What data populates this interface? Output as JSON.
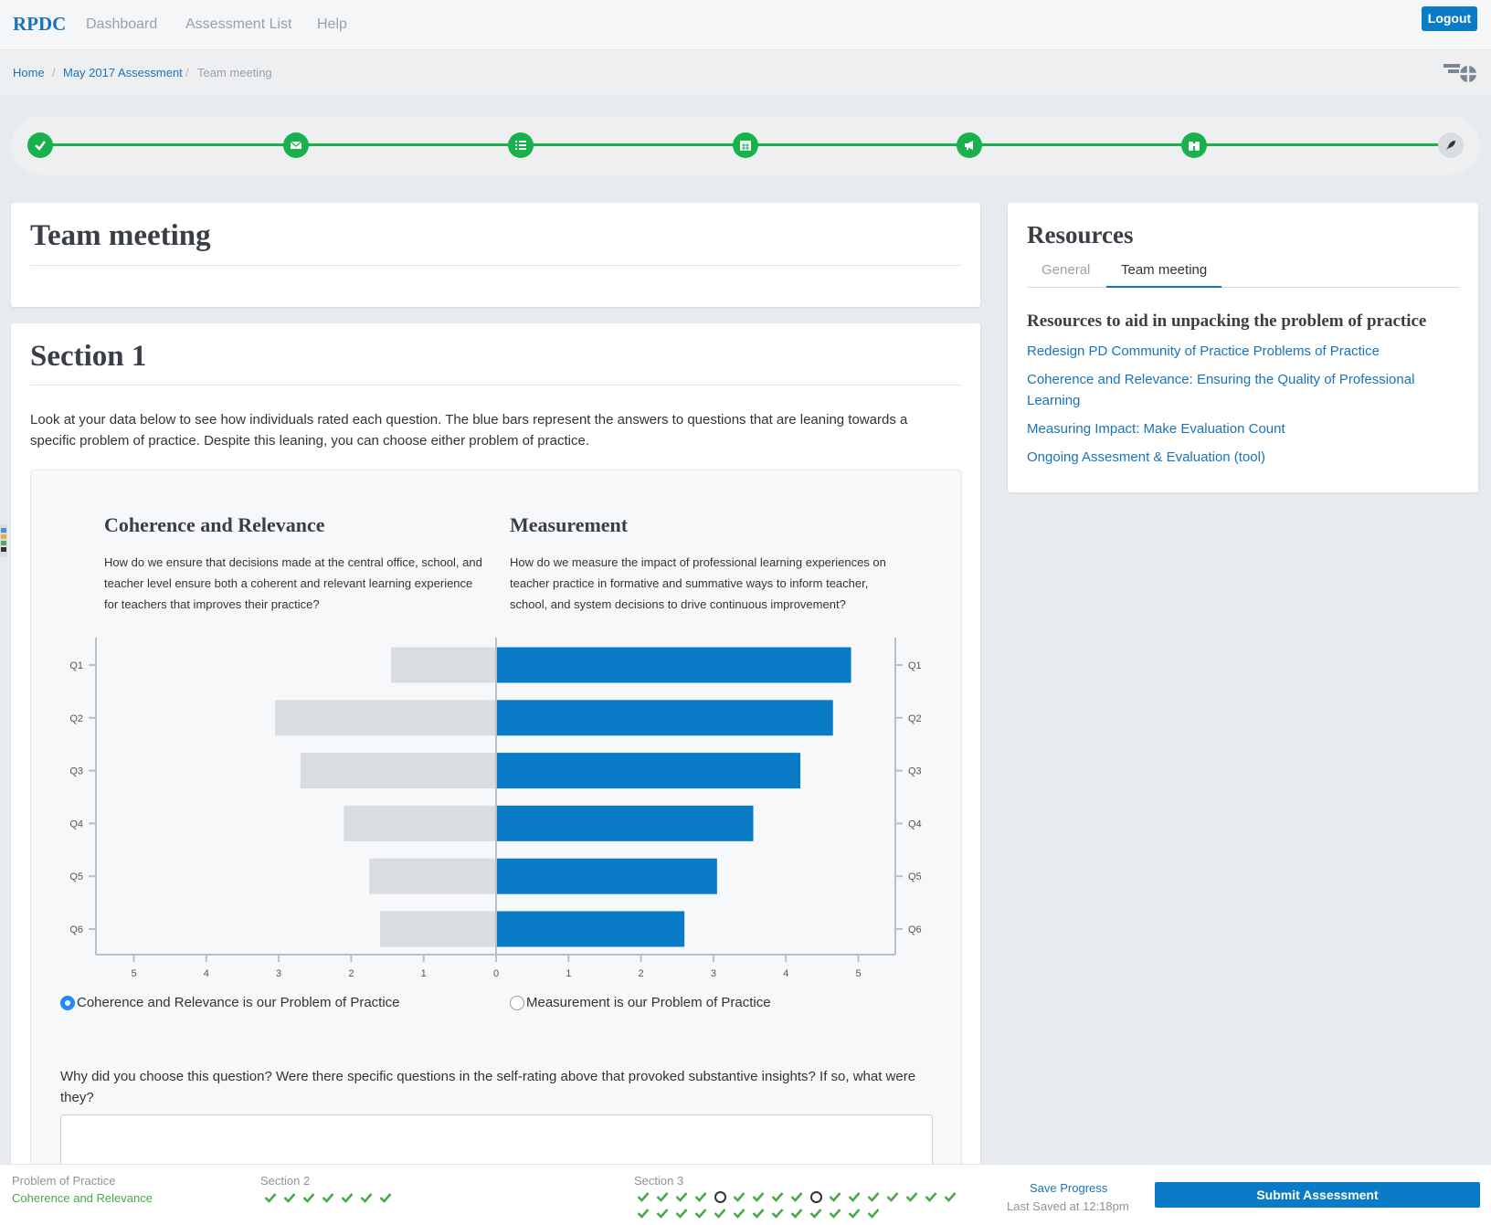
{
  "nav": {
    "brand": "RPDC",
    "links": [
      "Dashboard",
      "Assessment List",
      "Help"
    ],
    "logout": "Logout"
  },
  "breadcrumb": {
    "home": "Home",
    "assessment": "May 2017 Assessment",
    "current": "Team meeting",
    "separator": "/"
  },
  "stepper": {
    "steps": [
      {
        "icon": "check-icon",
        "status": "complete"
      },
      {
        "icon": "envelope-icon",
        "status": "complete"
      },
      {
        "icon": "list-icon",
        "status": "complete"
      },
      {
        "icon": "calendar-icon",
        "status": "complete"
      },
      {
        "icon": "megaphone-icon",
        "status": "complete"
      },
      {
        "icon": "binoculars-icon",
        "status": "complete"
      },
      {
        "icon": "rocket-icon",
        "status": "pending"
      }
    ]
  },
  "page": {
    "title": "Team meeting",
    "section_title": "Section 1",
    "intro": "Look at your data below to see how individuals rated each question. The blue bars represent the answers to questions that are leaning towards a specific problem of practice. Despite this leaning, you can choose either problem of practice."
  },
  "comparison": {
    "left_title": "Coherence and Relevance",
    "left_desc": "How do we ensure that decisions made at the central office, school, and teacher level ensure both a coherent and relevant learning experience for teachers that improves their practice?",
    "right_title": "Measurement",
    "right_desc": "How do we measure the impact of professional learning experiences on teacher practice in formative and summative ways to inform teacher, school, and system decisions to drive continuous improvement?"
  },
  "chart_data": {
    "type": "bar",
    "orientation": "diverging-horizontal",
    "categories": [
      "Q1",
      "Q2",
      "Q3",
      "Q4",
      "Q5",
      "Q6"
    ],
    "series": [
      {
        "name": "Coherence and Relevance",
        "values": [
          1.45,
          3.05,
          2.7,
          2.1,
          1.75,
          1.6
        ],
        "color": "#d9dce0",
        "side": "left"
      },
      {
        "name": "Measurement",
        "values": [
          4.9,
          4.65,
          4.2,
          3.55,
          3.05,
          2.6
        ],
        "color": "#0a7bc6",
        "side": "right"
      }
    ],
    "xticks": [
      "5",
      "4",
      "3",
      "2",
      "1",
      "0",
      "1",
      "2",
      "3",
      "4",
      "5"
    ],
    "xlim": [
      -5,
      5
    ],
    "grid": false
  },
  "choices": {
    "option1": "Coherence and Relevance is our Problem of Practice",
    "option2": "Measurement is our Problem of Practice",
    "selected": "option1"
  },
  "question": "Why did you choose this question? Were there specific questions in the self-rating above that provoked substantive insights? If so, what were they?",
  "resources": {
    "title": "Resources",
    "tabs": [
      "General",
      "Team meeting"
    ],
    "active_tab": "Team meeting",
    "heading": "Resources to aid in unpacking the problem of practice",
    "links": [
      "Redesign PD Community of Practice Problems of Practice",
      "Coherence and Relevance: Ensuring the Quality of Professional Learning",
      "Measuring Impact: Make Evaluation Count",
      "Ongoing Assesment & Evaluation (tool)"
    ]
  },
  "bottom": {
    "pop_label": "Problem of Practice",
    "pop_value": "Coherence and Relevance",
    "section2_label": "Section 2",
    "section2_marks": [
      "done",
      "done",
      "done",
      "done",
      "done",
      "done",
      "done"
    ],
    "section3_label": "Section 3",
    "section3_row1": [
      "done",
      "done",
      "done",
      "done",
      "open",
      "done",
      "done",
      "done",
      "done",
      "open",
      "done",
      "done",
      "done",
      "done",
      "done",
      "done",
      "done"
    ],
    "section3_row2": [
      "done",
      "done",
      "done",
      "done",
      "done",
      "done",
      "done",
      "done",
      "done",
      "done",
      "done",
      "done",
      "done"
    ],
    "save": "Save Progress",
    "last_saved": "Last Saved at 12:18pm",
    "submit": "Submit Assessment"
  },
  "colors": {
    "brand_blue": "#0a7bc6",
    "success_green": "#19b14b",
    "bar_gray": "#d9dce0"
  }
}
